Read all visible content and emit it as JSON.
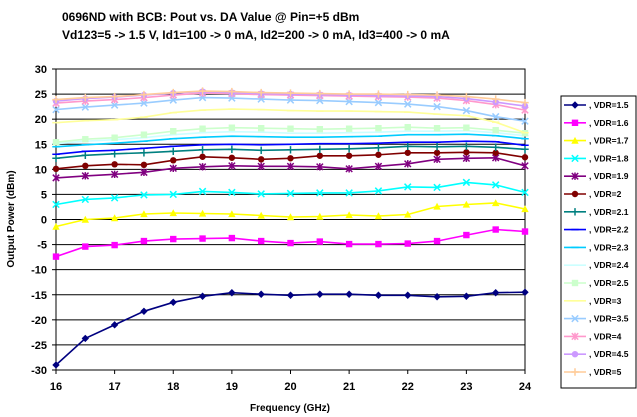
{
  "chart_data": {
    "type": "line",
    "title": "0696ND with BCB:  Pout vs. DA Value @ Pin=+5 dBm",
    "subtitle": "Vd123=5 -> 1.5 V, Id1=100 -> 0 mA, Id2=200 -> 0 mA, Id3=400 -> 0 mA",
    "xlabel": "Frequency (GHz)",
    "ylabel": "Output Power (dBm)",
    "xlim": [
      16,
      24
    ],
    "ylim": [
      -30,
      30
    ],
    "x_ticks": [
      16,
      17,
      18,
      19,
      20,
      21,
      22,
      23,
      24
    ],
    "y_ticks": [
      30,
      25,
      20,
      15,
      10,
      5,
      0,
      -5,
      -10,
      -15,
      -20,
      -25,
      -30
    ],
    "grid": "horizontal",
    "legend": "right",
    "x": [
      16,
      16.5,
      17,
      17.5,
      18,
      18.5,
      19,
      19.5,
      20,
      20.5,
      21,
      21.5,
      22,
      22.5,
      23,
      23.5,
      24
    ],
    "series": [
      {
        "name": ", VDR=1.5",
        "color": "#000080",
        "marker": "diamond",
        "values": [
          -29,
          -23.7,
          -21,
          -18.3,
          -16.5,
          -15.3,
          -14.6,
          -14.9,
          -15.1,
          -14.9,
          -14.9,
          -15.1,
          -15.1,
          -15.4,
          -15.3,
          -14.6,
          -14.5
        ]
      },
      {
        "name": ", VDR=1.6",
        "color": "#ff00ff",
        "marker": "square",
        "values": [
          -7.4,
          -5.4,
          -5.1,
          -4.3,
          -3.9,
          -3.8,
          -3.7,
          -4.3,
          -4.7,
          -4.4,
          -4.9,
          -4.9,
          -4.8,
          -4.3,
          -3.1,
          -2.0,
          -2.4
        ]
      },
      {
        "name": ", VDR=1.7",
        "color": "#ffff00",
        "marker": "triangle",
        "values": [
          -1.4,
          0.0,
          0.3,
          1.1,
          1.3,
          1.2,
          1.1,
          0.8,
          0.5,
          0.6,
          0.9,
          0.7,
          1.0,
          2.6,
          3.0,
          3.3,
          2.1
        ]
      },
      {
        "name": ", VDR=1.8",
        "color": "#00ffff",
        "marker": "x",
        "values": [
          3.0,
          4.0,
          4.3,
          4.9,
          5.0,
          5.6,
          5.4,
          5.1,
          5.2,
          5.3,
          5.3,
          5.7,
          6.5,
          6.4,
          7.4,
          6.9,
          5.4
        ]
      },
      {
        "name": ", VDR=1.9",
        "color": "#800080",
        "marker": "star",
        "values": [
          8.3,
          8.7,
          9.0,
          9.4,
          10.2,
          10.5,
          10.7,
          10.6,
          10.6,
          10.5,
          10.1,
          10.6,
          11.1,
          12.0,
          12.2,
          12.3,
          10.7
        ]
      },
      {
        "name": ", VDR=2",
        "color": "#800000",
        "marker": "circle",
        "values": [
          10.1,
          10.7,
          11.0,
          10.9,
          11.8,
          12.5,
          12.3,
          12.0,
          12.2,
          12.7,
          12.7,
          12.9,
          13.3,
          13.3,
          13.4,
          13.3,
          12.4
        ]
      },
      {
        "name": ", VDR=2.1",
        "color": "#008080",
        "marker": "plus",
        "values": [
          12.2,
          12.8,
          13.1,
          13.3,
          13.6,
          13.9,
          14.0,
          13.8,
          13.9,
          14.0,
          14.1,
          14.3,
          14.6,
          14.5,
          14.6,
          14.4,
          14.0
        ]
      },
      {
        "name": ", VDR=2.2",
        "color": "#0000ff",
        "marker": "dash",
        "values": [
          13.0,
          13.6,
          13.8,
          14.2,
          14.6,
          14.9,
          15.0,
          14.9,
          15.0,
          15.1,
          15.1,
          15.2,
          15.4,
          15.4,
          15.6,
          15.5,
          14.8
        ]
      },
      {
        "name": ", VDR=2.3",
        "color": "#00ccff",
        "marker": "dash",
        "values": [
          14.5,
          14.9,
          15.2,
          15.6,
          16.1,
          16.4,
          16.6,
          16.5,
          16.4,
          16.4,
          16.5,
          16.6,
          16.9,
          16.9,
          17.0,
          16.7,
          16.1
        ]
      },
      {
        "name": ", VDR=2.4",
        "color": "#ccffff",
        "marker": "dash",
        "values": [
          15.1,
          15.6,
          15.9,
          16.3,
          16.9,
          17.3,
          17.5,
          17.4,
          17.2,
          17.2,
          17.3,
          17.4,
          17.6,
          17.6,
          17.7,
          17.3,
          16.7
        ]
      },
      {
        "name": ", VDR=2.5",
        "color": "#ccffcc",
        "marker": "square",
        "values": [
          15.4,
          16.0,
          16.3,
          16.9,
          17.6,
          18.1,
          18.3,
          18.2,
          18.1,
          18.0,
          18.1,
          18.2,
          18.4,
          18.2,
          18.3,
          17.8,
          17.2
        ]
      },
      {
        "name": ", VDR=3",
        "color": "#ffff99",
        "marker": "dash",
        "values": [
          19.3,
          19.7,
          19.9,
          20.4,
          21.3,
          21.8,
          22.0,
          21.9,
          21.7,
          21.6,
          21.6,
          21.5,
          21.4,
          21.0,
          20.7,
          19.4,
          17.3
        ]
      },
      {
        "name": ", VDR=3.5",
        "color": "#99ccff",
        "marker": "x",
        "values": [
          21.9,
          22.4,
          22.8,
          23.2,
          23.8,
          24.3,
          24.2,
          24.0,
          23.8,
          23.7,
          23.5,
          23.3,
          23.0,
          22.5,
          21.7,
          20.5,
          19.6
        ]
      },
      {
        "name": ", VDR=4",
        "color": "#ff99cc",
        "marker": "star",
        "values": [
          23.2,
          23.6,
          23.9,
          24.3,
          24.8,
          25.2,
          25.1,
          24.9,
          24.8,
          24.7,
          24.6,
          24.5,
          24.4,
          24.2,
          23.7,
          22.9,
          21.8
        ]
      },
      {
        "name": ", VDR=4.5",
        "color": "#cc99ff",
        "marker": "circle",
        "values": [
          23.6,
          24.1,
          24.4,
          24.8,
          25.2,
          25.5,
          25.3,
          25.1,
          25.0,
          24.9,
          24.8,
          24.7,
          24.6,
          24.5,
          24.1,
          23.4,
          22.6
        ]
      },
      {
        "name": ", VDR=5",
        "color": "#ffcc99",
        "marker": "plus",
        "values": [
          23.9,
          24.3,
          24.5,
          24.9,
          25.3,
          25.6,
          25.5,
          25.3,
          25.2,
          25.1,
          25.0,
          25.0,
          24.9,
          24.8,
          24.5,
          24.0,
          23.3
        ]
      }
    ]
  }
}
